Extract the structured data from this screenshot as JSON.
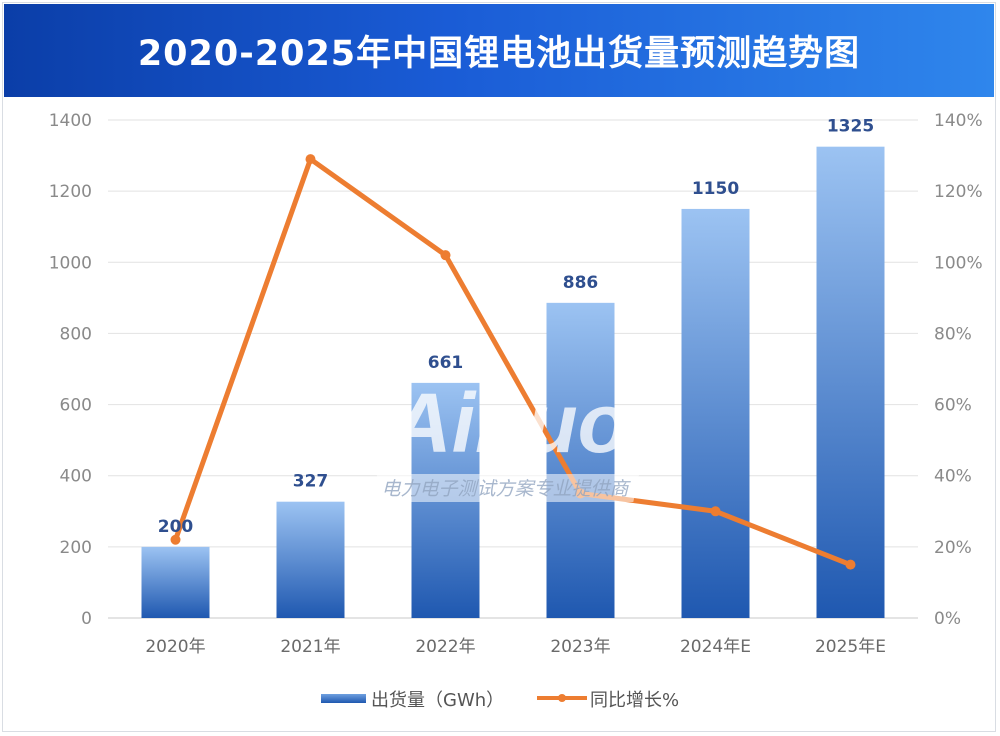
{
  "title": "2020-2025年中国锂电池出货量预测趋势图",
  "watermark": {
    "logo": "Ainuo",
    "tagline": "电力电子测试方案专业提供商"
  },
  "chart_data": {
    "type": "bar+line",
    "title": "2020-2025年中国锂电池出货量预测趋势图",
    "categories": [
      "2020年",
      "2021年",
      "2022年",
      "2023年",
      "2024年E",
      "2025年E"
    ],
    "series": [
      {
        "name": "出货量（GWh）",
        "type": "bar",
        "axis": "left",
        "values": [
          200,
          327,
          661,
          886,
          1150,
          1325
        ],
        "color": "#2a62b8"
      },
      {
        "name": "同比增长%",
        "type": "line",
        "axis": "right",
        "values": [
          22,
          129,
          102,
          35,
          30,
          15
        ],
        "color": "#ed7d31"
      }
    ],
    "left_axis": {
      "range": [
        0,
        1400
      ],
      "ticks": [
        "0",
        "200",
        "400",
        "600",
        "800",
        "1000",
        "1200",
        "1400"
      ]
    },
    "right_axis": {
      "range": [
        0,
        140
      ],
      "ticks": [
        "0%",
        "20%",
        "40%",
        "60%",
        "80%",
        "100%",
        "120%",
        "140%"
      ]
    },
    "grid": true,
    "legend": "bottom",
    "data_labels": [
      "200",
      "327",
      "661",
      "886",
      "1150",
      "1325"
    ]
  }
}
